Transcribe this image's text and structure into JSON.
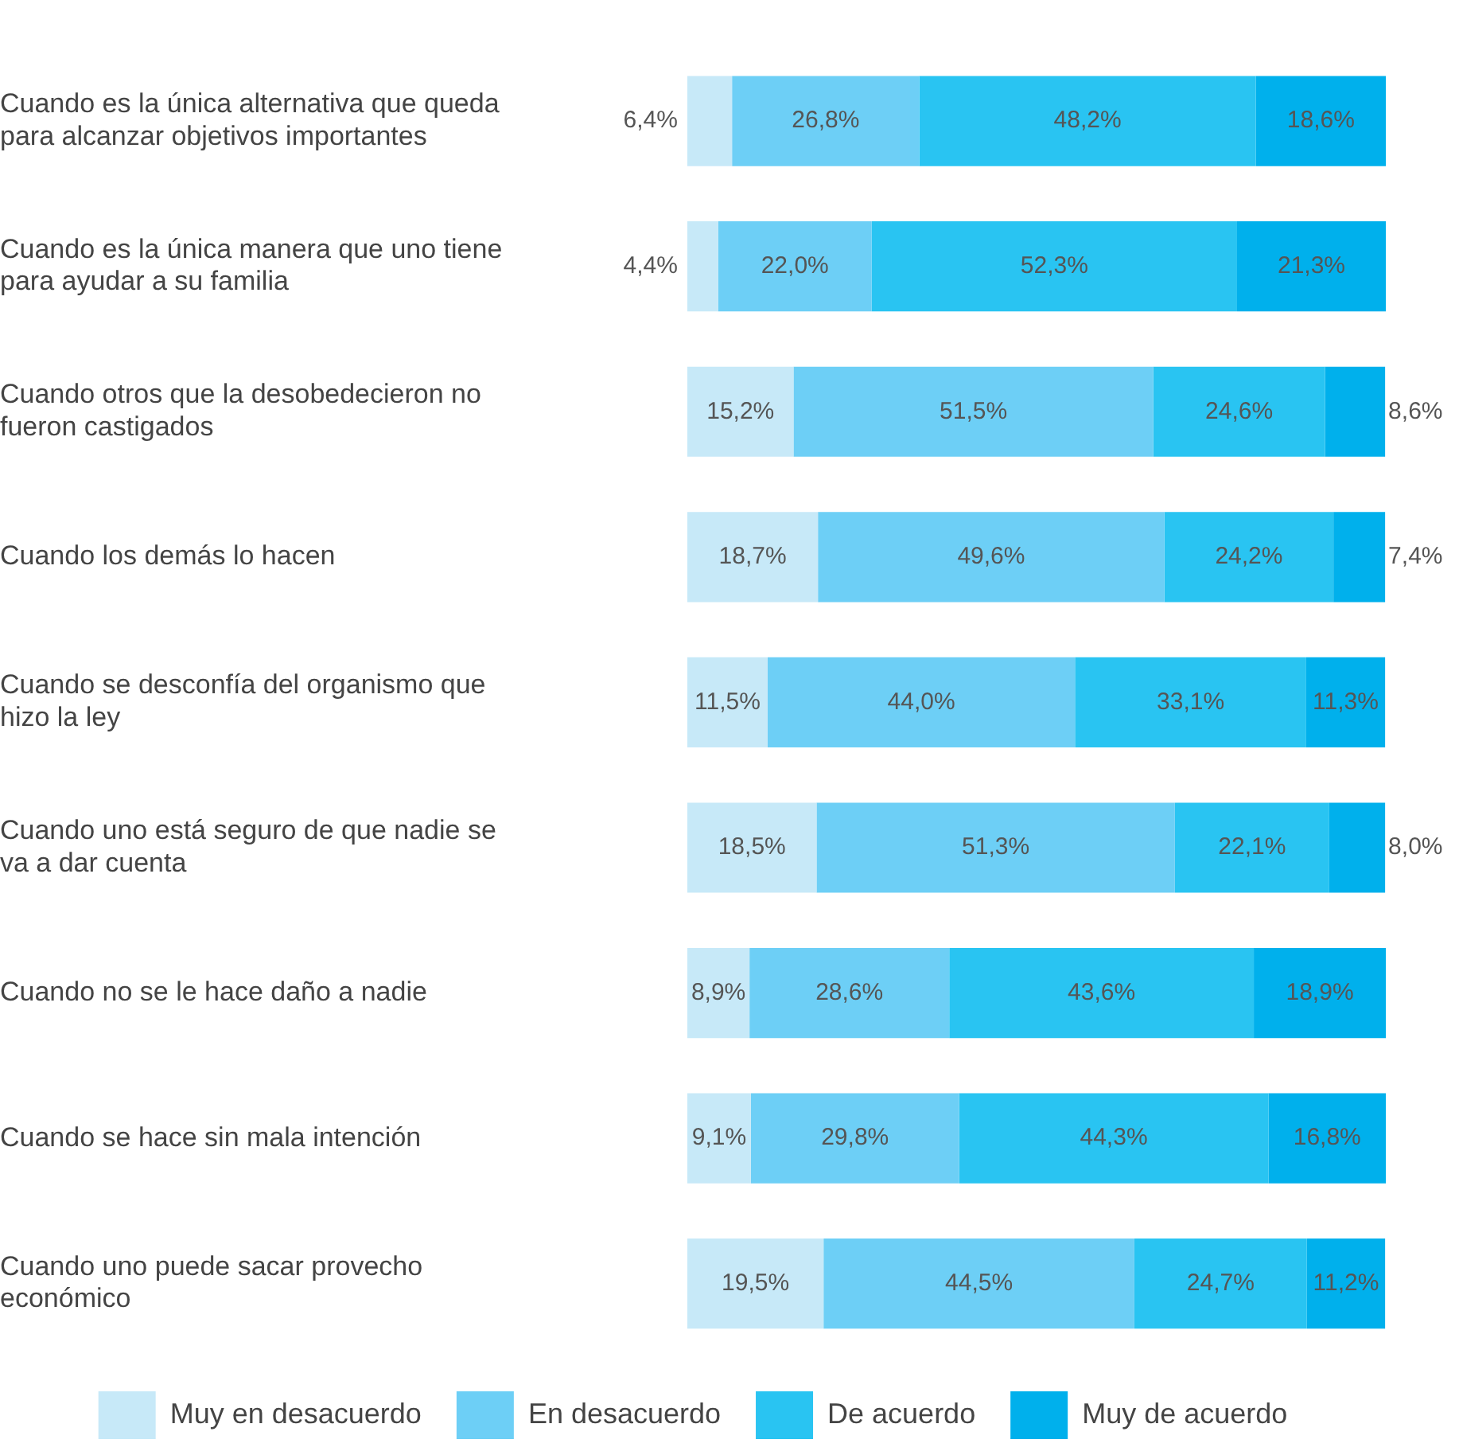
{
  "chart_data": {
    "type": "bar",
    "orientation": "horizontal",
    "stacked": true,
    "legend": "bottom",
    "categories": [
      "Cuando es la única alternativa que queda para alcanzar objetivos importantes",
      "Cuando es la única manera que uno tiene para ayudar a su familia",
      "Cuando otros que la desobedecieron no fueron castigados",
      "Cuando los demás lo hacen",
      "Cuando se desconfía del organismo que hizo la ley",
      "Cuando uno está seguro de que nadie se va a dar cuenta",
      "Cuando no se le hace daño a nadie",
      "Cuando se hace sin mala intención",
      "Cuando uno puede sacar provecho económico"
    ],
    "series": [
      {
        "name": "Muy en desacuerdo",
        "color": "#c7e9f8",
        "values": [
          6.4,
          4.4,
          15.2,
          18.7,
          11.5,
          18.5,
          8.9,
          9.1,
          19.5
        ],
        "value_labels": [
          "6,4%",
          "4,4%",
          "15,2%",
          "18,7%",
          "11,5%",
          "18,5%",
          "8,9%",
          "9,1%",
          "19,5%"
        ]
      },
      {
        "name": "En desacuerdo",
        "color": "#6dcff6",
        "values": [
          26.8,
          22.0,
          51.5,
          49.6,
          44.0,
          51.3,
          28.6,
          29.8,
          44.5
        ],
        "value_labels": [
          "26,8%",
          "22,0%",
          "51,5%",
          "49,6%",
          "44,0%",
          "51,3%",
          "28,6%",
          "29,8%",
          "44,5%"
        ]
      },
      {
        "name": "De acuerdo",
        "color": "#29c4f2",
        "values": [
          48.2,
          52.3,
          24.6,
          24.2,
          33.1,
          22.1,
          43.6,
          44.3,
          24.7
        ],
        "value_labels": [
          "48,2%",
          "52,3%",
          "24,6%",
          "24,2%",
          "33,1%",
          "22,1%",
          "43,6%",
          "44,3%",
          "24,7%"
        ]
      },
      {
        "name": "Muy de acuerdo",
        "color": "#00b0ec",
        "values": [
          18.6,
          21.3,
          8.6,
          7.4,
          11.3,
          8.0,
          18.9,
          16.8,
          11.2
        ],
        "value_labels": [
          "18,6%",
          "21,3%",
          "8,6%",
          "7,4%",
          "11,3%",
          "8,0%",
          "18,9%",
          "16,8%",
          "11,2%"
        ]
      }
    ]
  }
}
